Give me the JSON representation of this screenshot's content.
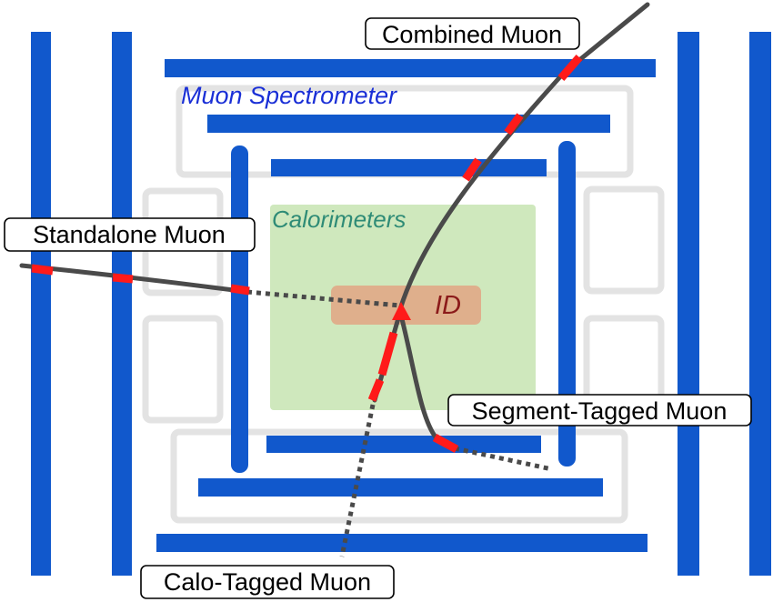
{
  "regions": {
    "muon_spectrometer": "Muon Spectrometer",
    "calorimeters": "Calorimeters",
    "inner_detector": "ID"
  },
  "muon_types": {
    "combined": "Combined Muon",
    "standalone": "Standalone Muon",
    "segment_tagged": "Segment-Tagged Muon",
    "calo_tagged": "Calo-Tagged Muon"
  },
  "colors": {
    "detector_bar": "#1158cc",
    "calorimeter_fill": "#cfe8bd",
    "inner_detector_fill": "#dfaf8c",
    "hit": "#ff1a1a",
    "track": "#4a4a4a",
    "spectrometer_text": "#1a2fd6",
    "calorimeter_text": "#2e8b76",
    "inner_detector_text": "#8b1a1a"
  }
}
